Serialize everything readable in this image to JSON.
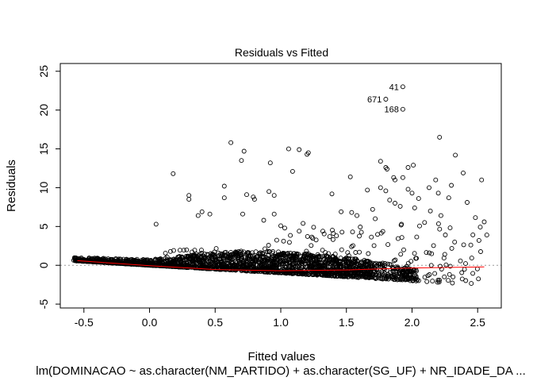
{
  "chart_data": {
    "type": "scatter",
    "title": "Residuals vs Fitted",
    "xlabel": "Fitted values",
    "ylabel": "Residuals",
    "subtitle": "lm(DOMINACAO ~ as.character(NM_PARTIDO) + as.character(SG_UF) + NR_IDADE_DA ...",
    "xlim": [
      -0.68,
      2.68
    ],
    "ylim": [
      -5.5,
      26.0
    ],
    "x_ticks": [
      -0.5,
      0.0,
      0.5,
      1.0,
      1.5,
      2.0,
      2.5
    ],
    "x_tick_labels": [
      "-0.5",
      "0.0",
      "0.5",
      "1.0",
      "1.5",
      "2.0",
      "2.5"
    ],
    "y_ticks": [
      -5,
      0,
      5,
      10,
      15,
      20,
      25
    ],
    "y_tick_labels": [
      "-5",
      "0",
      "5",
      "10",
      "15",
      "20",
      "25"
    ],
    "reference_line_y": 0,
    "labeled_points": [
      {
        "label": "41",
        "x": 1.93,
        "y": 23.0
      },
      {
        "label": "671",
        "x": 1.8,
        "y": 21.4
      },
      {
        "label": "168",
        "x": 1.93,
        "y": 20.1
      }
    ],
    "outliers": [
      [
        0.18,
        11.8
      ],
      [
        0.62,
        15.8
      ],
      [
        0.72,
        14.7
      ],
      [
        0.7,
        13.5
      ],
      [
        1.06,
        15.0
      ],
      [
        1.14,
        14.9
      ],
      [
        1.21,
        14.5
      ],
      [
        1.2,
        14.3
      ],
      [
        1.09,
        12.1
      ],
      [
        0.92,
        13.2
      ],
      [
        2.21,
        16.5
      ],
      [
        2.33,
        14.2
      ],
      [
        1.76,
        13.4
      ],
      [
        1.8,
        12.6
      ],
      [
        1.81,
        12.4
      ],
      [
        1.93,
        11.3
      ],
      [
        1.97,
        12.6
      ],
      [
        2.01,
        12.9
      ],
      [
        2.39,
        11.9
      ],
      [
        2.53,
        11.0
      ],
      [
        1.86,
        11.3
      ],
      [
        1.87,
        11.0
      ],
      [
        1.53,
        11.4
      ],
      [
        2.18,
        11.0
      ],
      [
        2.3,
        10.3
      ],
      [
        1.66,
        9.7
      ],
      [
        1.76,
        10.0
      ],
      [
        1.8,
        9.6
      ],
      [
        1.97,
        9.8
      ],
      [
        2.0,
        9.3
      ],
      [
        2.13,
        10.0
      ],
      [
        2.2,
        9.3
      ],
      [
        1.39,
        9.2
      ],
      [
        0.91,
        9.5
      ],
      [
        0.95,
        9.0
      ],
      [
        0.74,
        9.1
      ],
      [
        0.79,
        8.8
      ],
      [
        0.8,
        8.5
      ],
      [
        0.3,
        9.0
      ],
      [
        0.3,
        8.5
      ],
      [
        0.57,
        10.2
      ],
      [
        0.57,
        8.7
      ],
      [
        1.83,
        8.4
      ],
      [
        1.87,
        8.0
      ],
      [
        1.91,
        7.6
      ],
      [
        2.05,
        8.6
      ],
      [
        2.28,
        8.7
      ],
      [
        2.42,
        8.1
      ],
      [
        1.7,
        7.2
      ],
      [
        1.54,
        6.8
      ],
      [
        1.46,
        6.9
      ],
      [
        1.58,
        6.4
      ],
      [
        1.72,
        6.0
      ],
      [
        2.02,
        7.4
      ],
      [
        2.14,
        7.0
      ],
      [
        2.22,
        6.4
      ],
      [
        1.92,
        5.3
      ],
      [
        2.55,
        5.6
      ],
      [
        2.57,
        3.9
      ],
      [
        2.51,
        3.2
      ],
      [
        0.05,
        5.3
      ],
      [
        0.4,
        6.9
      ],
      [
        0.46,
        6.6
      ],
      [
        0.37,
        6.4
      ],
      [
        0.71,
        6.6
      ],
      [
        0.95,
        6.6
      ],
      [
        0.87,
        5.8
      ],
      [
        1.17,
        5.4
      ],
      [
        1.0,
        5.1
      ],
      [
        1.03,
        4.8
      ],
      [
        1.14,
        4.4
      ],
      [
        1.25,
        4.9
      ],
      [
        1.32,
        4.4
      ],
      [
        1.4,
        4.1
      ]
    ],
    "labeled_points_note": "",
    "smoother": [
      [
        -0.55,
        0.6
      ],
      [
        0.0,
        -0.05
      ],
      [
        0.5,
        -0.55
      ],
      [
        1.0,
        -0.7
      ],
      [
        1.5,
        -0.6
      ],
      [
        2.0,
        -0.35
      ],
      [
        2.55,
        -0.2
      ]
    ]
  }
}
